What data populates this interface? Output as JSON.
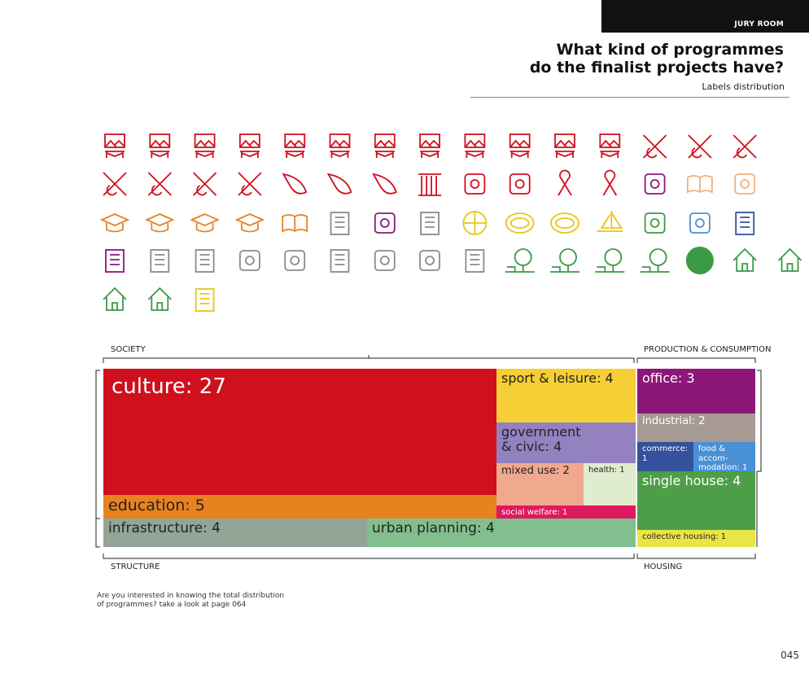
{
  "header": {
    "section": "JURY ROOM",
    "title_lines": [
      "What kind of programmes",
      "do the finalist projects have?"
    ],
    "subtitle": "Labels distribution"
  },
  "groups": {
    "society": "SOCIETY",
    "production": "PRODUCTION & CONSUMPTION",
    "structure": "STRUCTURE",
    "housing": "HOUSING"
  },
  "treemap": {
    "cells": [
      {
        "lines": [
          "culture: 27"
        ]
      },
      {
        "lines": [
          "education: 5"
        ]
      },
      {
        "lines": [
          "sport & leisure: 4"
        ]
      },
      {
        "lines": [
          "government",
          "& civic: 4"
        ]
      },
      {
        "lines": [
          "mixed use: 2"
        ]
      },
      {
        "lines": [
          "health: 1"
        ]
      },
      {
        "lines": [
          "social welfare: 1"
        ]
      },
      {
        "lines": [
          "infrastructure: 4"
        ]
      },
      {
        "lines": [
          "urban planning: 4"
        ]
      },
      {
        "lines": [
          "office: 3"
        ]
      },
      {
        "lines": [
          "industrial: 2"
        ]
      },
      {
        "lines": [
          "commerce: 1"
        ]
      },
      {
        "lines": [
          "food & accom-",
          "modation: 1"
        ]
      },
      {
        "lines": [
          "single house: 4"
        ]
      },
      {
        "lines": [
          "collective housing: 1"
        ]
      }
    ]
  },
  "note": [
    "Are you interested in knowing the total distribution",
    "of programmes? take a look at page 064"
  ],
  "page_number": "045"
}
